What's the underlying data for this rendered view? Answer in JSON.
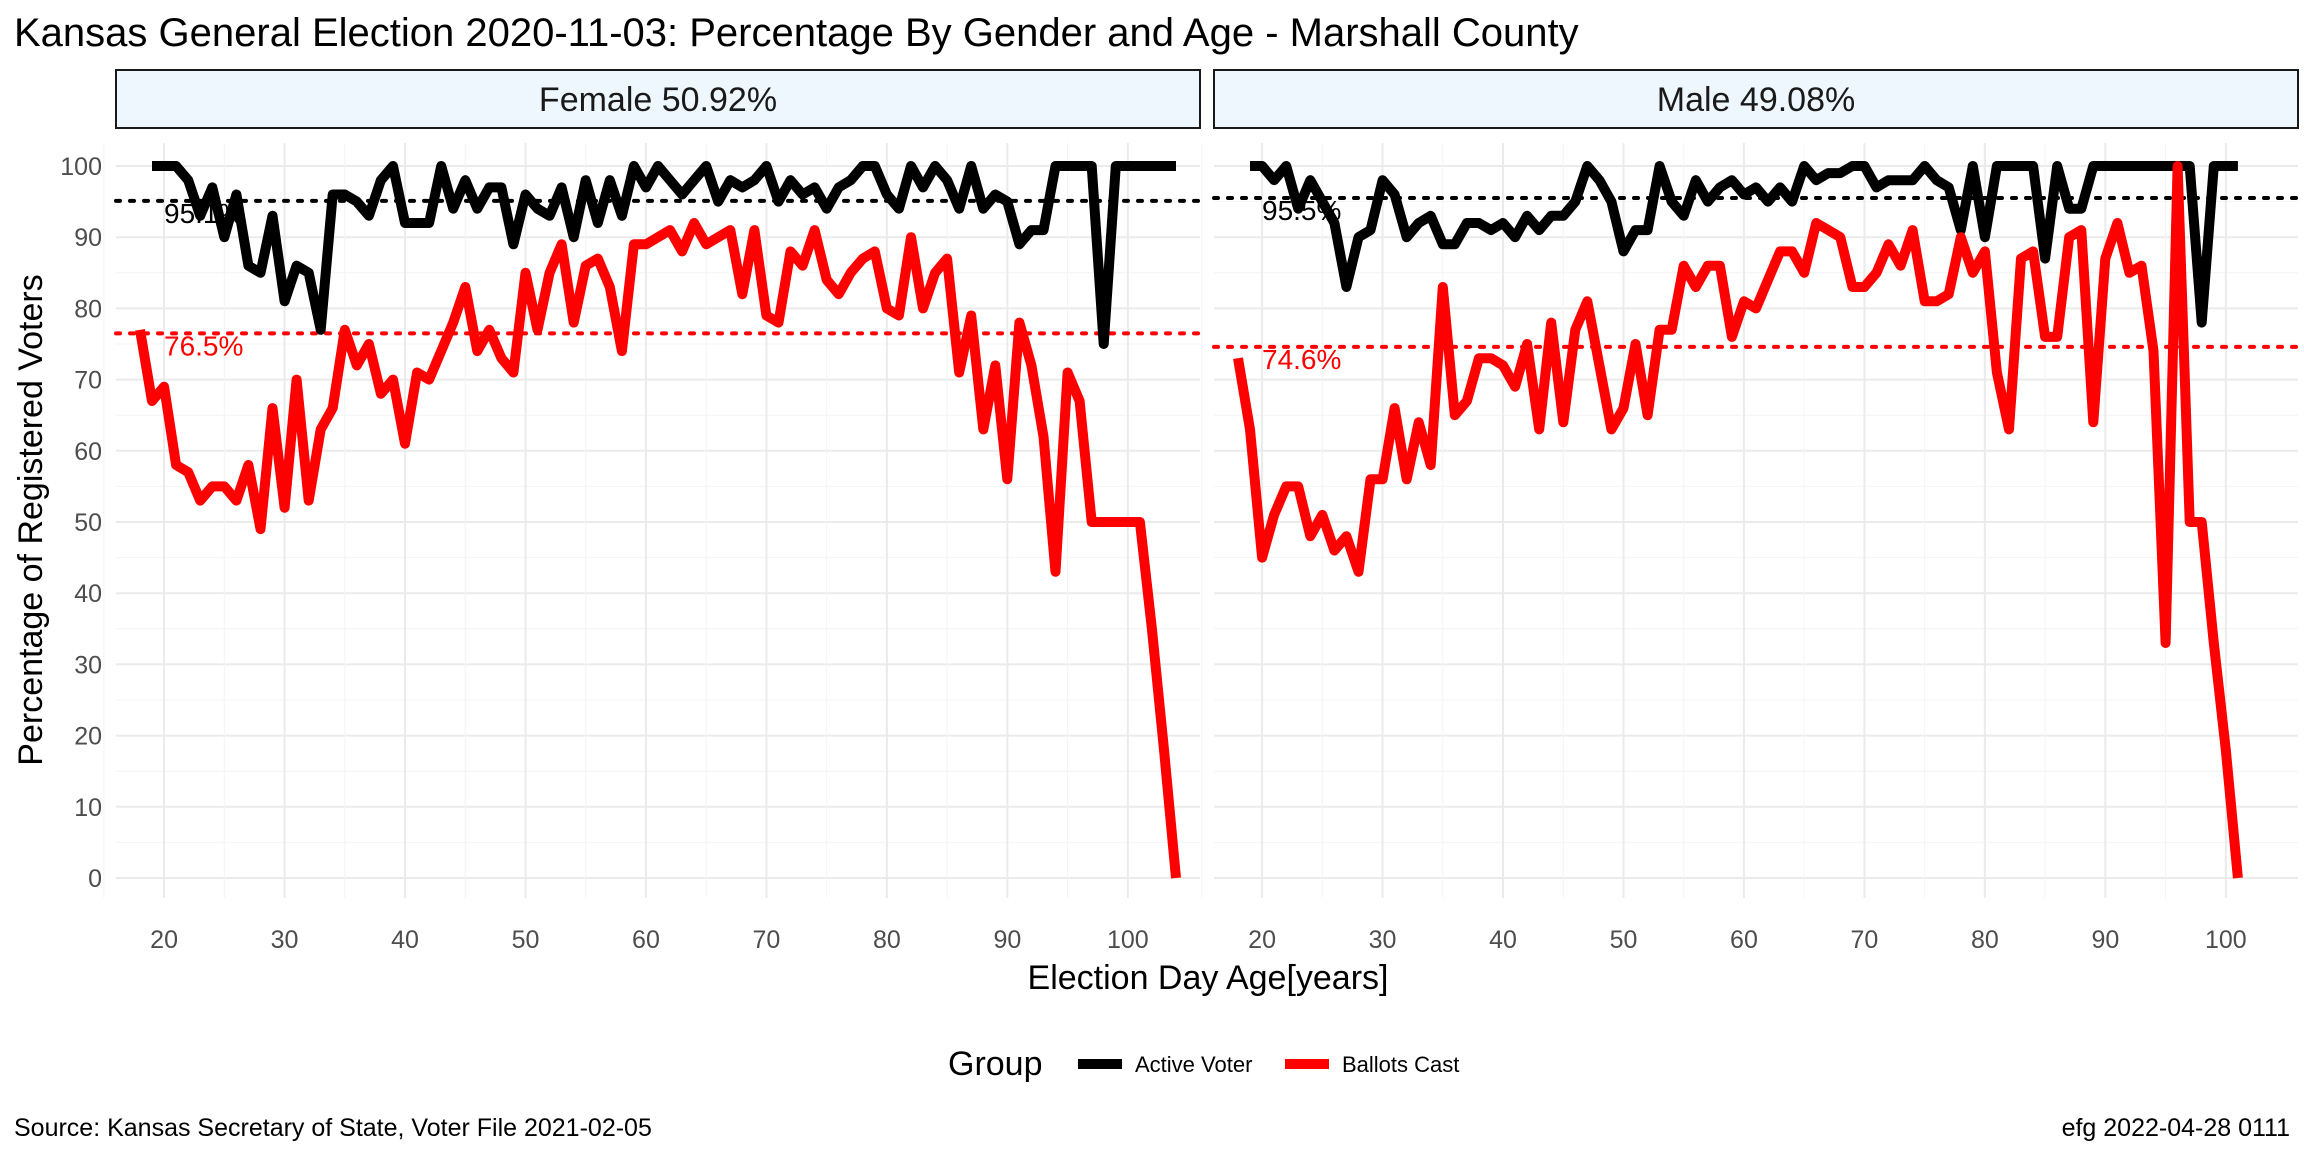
{
  "chart_data": {
    "type": "line",
    "title": "Kansas General Election 2020-11-03:  Percentage By Gender and Age - Marshall County",
    "xlabel": "Election Day Age[years]",
    "ylabel": "Percentage of Registered Voters",
    "x_range": [
      18,
      104
    ],
    "x_ticks": [
      20,
      30,
      40,
      50,
      60,
      70,
      80,
      90,
      100
    ],
    "ylim": [
      0,
      100
    ],
    "y_ticks": [
      0,
      10,
      20,
      30,
      40,
      50,
      60,
      70,
      80,
      90,
      100
    ],
    "grid": true,
    "legend": {
      "title": "Group",
      "position": "bottom",
      "items": [
        {
          "label": "Active Voter",
          "color": "#000000"
        },
        {
          "label": "Ballots Cast",
          "color": "#ff0000"
        }
      ]
    },
    "caption_left": "Source:  Kansas Secretary of State, Voter File  2021-02-05",
    "caption_right": "efg 2022-04-28 0111",
    "panels": [
      {
        "label": "Female 50.92%",
        "reference_lines": [
          {
            "series": "Active Voter",
            "value": 95.1,
            "label": "95.1%",
            "color": "#000000"
          },
          {
            "series": "Ballots Cast",
            "value": 76.5,
            "label": "76.5%",
            "color": "#ff0000"
          }
        ],
        "series": [
          {
            "name": "Active Voter",
            "color": "#000000",
            "x": [
              19,
              20,
              21,
              22,
              23,
              24,
              25,
              26,
              27,
              28,
              29,
              30,
              31,
              32,
              33,
              34,
              35,
              36,
              37,
              38,
              39,
              40,
              41,
              42,
              43,
              44,
              45,
              46,
              47,
              48,
              49,
              50,
              51,
              52,
              53,
              54,
              55,
              56,
              57,
              58,
              59,
              60,
              61,
              62,
              63,
              64,
              65,
              66,
              67,
              68,
              69,
              70,
              71,
              72,
              73,
              74,
              75,
              76,
              77,
              78,
              79,
              80,
              81,
              82,
              83,
              84,
              85,
              86,
              87,
              88,
              89,
              90,
              91,
              92,
              93,
              94,
              95,
              96,
              97,
              98,
              99,
              100,
              101,
              102,
              103,
              104
            ],
            "y": [
              100,
              100,
              100,
              98,
              93,
              97,
              90,
              96,
              86,
              85,
              93,
              81,
              86,
              85,
              77,
              96,
              96,
              95,
              93,
              98,
              100,
              92,
              92,
              92,
              100,
              94,
              98,
              94,
              97,
              97,
              89,
              96,
              94,
              93,
              97,
              90,
              98,
              92,
              98,
              93,
              100,
              97,
              100,
              98,
              96,
              98,
              100,
              95,
              98,
              97,
              98,
              100,
              95,
              98,
              96,
              97,
              94,
              97,
              98,
              100,
              100,
              96,
              94,
              100,
              97,
              100,
              98,
              94,
              100,
              94,
              96,
              95,
              89,
              91,
              91,
              100,
              100,
              100,
              100,
              75,
              100,
              100,
              100,
              100,
              100,
              100
            ]
          },
          {
            "name": "Ballots Cast",
            "color": "#ff0000",
            "x": [
              18,
              19,
              20,
              21,
              22,
              23,
              24,
              25,
              26,
              27,
              28,
              29,
              30,
              31,
              32,
              33,
              34,
              35,
              36,
              37,
              38,
              39,
              40,
              41,
              42,
              43,
              44,
              45,
              46,
              47,
              48,
              49,
              50,
              51,
              52,
              53,
              54,
              55,
              56,
              57,
              58,
              59,
              60,
              61,
              62,
              63,
              64,
              65,
              66,
              67,
              68,
              69,
              70,
              71,
              72,
              73,
              74,
              75,
              76,
              77,
              78,
              79,
              80,
              81,
              82,
              83,
              84,
              85,
              86,
              87,
              88,
              89,
              90,
              91,
              92,
              93,
              94,
              95,
              96,
              97,
              98,
              99,
              100,
              101,
              102,
              103,
              104
            ],
            "y": [
              77,
              67,
              69,
              58,
              57,
              53,
              55,
              55,
              53,
              58,
              49,
              66,
              52,
              70,
              53,
              63,
              66,
              77,
              72,
              75,
              68,
              70,
              61,
              71,
              70,
              74,
              78,
              83,
              74,
              77,
              73,
              71,
              85,
              77,
              85,
              89,
              78,
              86,
              87,
              83,
              74,
              89,
              89,
              90,
              91,
              88,
              92,
              89,
              90,
              91,
              82,
              91,
              79,
              78,
              88,
              86,
              91,
              84,
              82,
              85,
              87,
              88,
              80,
              79,
              90,
              80,
              85,
              87,
              71,
              79,
              63,
              72,
              56,
              78,
              72,
              62,
              43,
              71,
              67,
              50,
              50,
              50,
              50,
              50,
              35,
              18,
              0
            ]
          }
        ]
      },
      {
        "label": "Male 49.08%",
        "reference_lines": [
          {
            "series": "Active Voter",
            "value": 95.5,
            "label": "95.5%",
            "color": "#000000"
          },
          {
            "series": "Ballots Cast",
            "value": 74.6,
            "label": "74.6%",
            "color": "#ff0000"
          }
        ],
        "series": [
          {
            "name": "Active Voter",
            "color": "#000000",
            "x": [
              19,
              20,
              21,
              22,
              23,
              24,
              25,
              26,
              27,
              28,
              29,
              30,
              31,
              32,
              33,
              34,
              35,
              36,
              37,
              38,
              39,
              40,
              41,
              42,
              43,
              44,
              45,
              46,
              47,
              48,
              49,
              50,
              51,
              52,
              53,
              54,
              55,
              56,
              57,
              58,
              59,
              60,
              61,
              62,
              63,
              64,
              65,
              66,
              67,
              68,
              69,
              70,
              71,
              72,
              73,
              74,
              75,
              76,
              77,
              78,
              79,
              80,
              81,
              82,
              83,
              84,
              85,
              86,
              87,
              88,
              89,
              90,
              91,
              92,
              93,
              94,
              95,
              96,
              97,
              98,
              99,
              100,
              101
            ],
            "y": [
              100,
              100,
              98,
              100,
              94,
              98,
              95,
              92,
              83,
              90,
              91,
              98,
              96,
              90,
              92,
              93,
              89,
              89,
              92,
              92,
              91,
              92,
              90,
              93,
              91,
              93,
              93,
              95,
              100,
              98,
              95,
              88,
              91,
              91,
              100,
              95,
              93,
              98,
              95,
              97,
              98,
              96,
              97,
              95,
              97,
              95,
              100,
              98,
              99,
              99,
              100,
              100,
              97,
              98,
              98,
              98,
              100,
              98,
              97,
              91,
              100,
              90,
              100,
              100,
              100,
              100,
              87,
              100,
              94,
              94,
              100,
              100,
              100,
              100,
              100,
              100,
              100,
              100,
              100,
              78,
              100,
              100,
              100
            ]
          },
          {
            "name": "Ballots Cast",
            "color": "#ff0000",
            "x": [
              18,
              19,
              20,
              21,
              22,
              23,
              24,
              25,
              26,
              27,
              28,
              29,
              30,
              31,
              32,
              33,
              34,
              35,
              36,
              37,
              38,
              39,
              40,
              41,
              42,
              43,
              44,
              45,
              46,
              47,
              48,
              49,
              50,
              51,
              52,
              53,
              54,
              55,
              56,
              57,
              58,
              59,
              60,
              61,
              62,
              63,
              64,
              65,
              66,
              67,
              68,
              69,
              70,
              71,
              72,
              73,
              74,
              75,
              76,
              77,
              78,
              79,
              80,
              81,
              82,
              83,
              84,
              85,
              86,
              87,
              88,
              89,
              90,
              91,
              92,
              93,
              94,
              95,
              96,
              97,
              98,
              99,
              100,
              101
            ],
            "y": [
              73,
              63,
              45,
              51,
              55,
              55,
              48,
              51,
              46,
              48,
              43,
              56,
              56,
              66,
              56,
              64,
              58,
              83,
              65,
              67,
              73,
              73,
              72,
              69,
              75,
              63,
              78,
              64,
              77,
              81,
              72,
              63,
              66,
              75,
              65,
              77,
              77,
              86,
              83,
              86,
              86,
              76,
              81,
              80,
              84,
              88,
              88,
              85,
              92,
              91,
              90,
              83,
              83,
              85,
              89,
              86,
              91,
              81,
              81,
              82,
              90,
              85,
              88,
              71,
              63,
              87,
              88,
              76,
              76,
              90,
              91,
              64,
              87,
              92,
              85,
              86,
              74,
              33,
              100,
              50,
              50,
              33,
              18,
              0
            ]
          }
        ]
      }
    ]
  }
}
